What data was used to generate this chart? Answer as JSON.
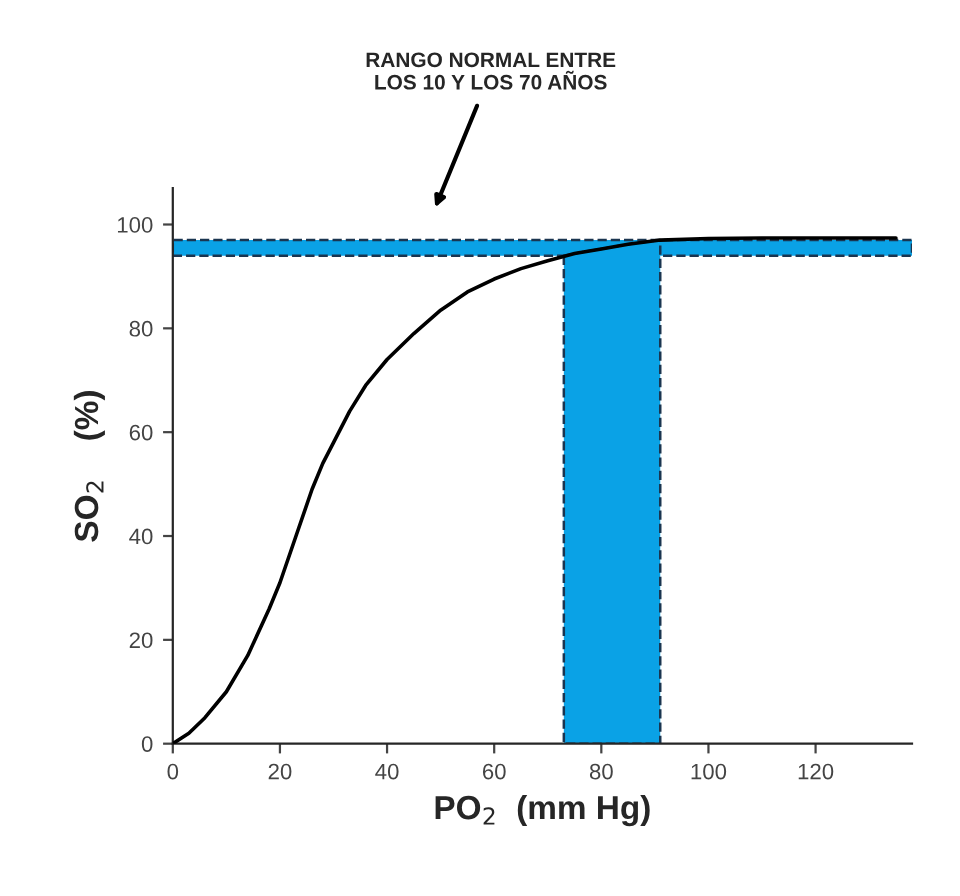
{
  "chart_data": {
    "type": "line",
    "xlabel": "PO$_{2}$  (mm Hg)",
    "ylabel": "SO$_{2}$    (%)",
    "series": [
      {
        "type": "area",
        "color": "#0aa2e6",
        "line_style": "dashed",
        "x": [
          73,
          76,
          80,
          85,
          91
        ],
        "values": [
          94,
          94.6,
          95.3,
          96.2,
          97
        ]
      },
      {
        "color": "#000000",
        "x": [
          0,
          3,
          6,
          10,
          14,
          18,
          20,
          23,
          26,
          28,
          30,
          33,
          36,
          40,
          45,
          50,
          55,
          60,
          65,
          70,
          75,
          80,
          85,
          91,
          100,
          110,
          120,
          135
        ],
        "values": [
          0,
          2,
          5,
          10,
          17,
          26,
          31,
          40,
          49,
          54,
          58,
          64,
          69,
          74,
          79,
          83.5,
          87,
          89.5,
          91.5,
          93,
          94.4,
          95.3,
          96.2,
          97,
          97.3,
          97.4,
          97.4,
          97.4
        ]
      }
    ],
    "bands": [
      {
        "axis": "y",
        "from": 94,
        "to": 97,
        "color": "#0aa2e6"
      }
    ],
    "annotations": [
      "RANGO NORMAL ENTRE\nLOS 10 Y LOS 70 AÑOS"
    ],
    "xlim": [
      0,
      138
    ],
    "ylim": [
      0,
      107
    ],
    "xticks": [
      0,
      20,
      40,
      60,
      80,
      100,
      120
    ],
    "yticks": [
      0,
      20,
      40,
      60,
      80,
      100
    ],
    "grid": false,
    "legend": false
  }
}
